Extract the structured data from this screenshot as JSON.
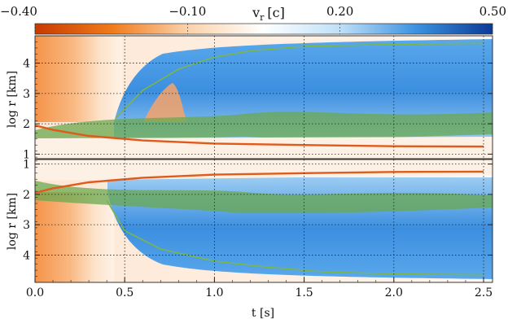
{
  "chart_data": {
    "type": "heatmap",
    "colorbar": {
      "label": "v",
      "label_sub": "r",
      "label_unit": "[c]",
      "range": [
        -0.4,
        0.5
      ],
      "tick_values": [
        -0.4,
        -0.1,
        0.2,
        0.5
      ],
      "tick_labels": [
        "−0.40",
        "−0.10",
        "0.20",
        "0.50"
      ],
      "colors": [
        "#c83a00",
        "#f07a1a",
        "#fbd2aa",
        "#ffffff",
        "#bfe0f8",
        "#3c92e0",
        "#0a3a96"
      ]
    },
    "xaxis": {
      "label": "t [s]",
      "range": [
        0.0,
        2.55
      ],
      "tick_values": [
        0.0,
        0.5,
        1.0,
        1.5,
        2.0,
        2.5
      ],
      "tick_labels": [
        "0.0",
        "0.5",
        "1.0",
        "1.5",
        "2.0",
        "2.5"
      ]
    },
    "panels": [
      {
        "name": "upper",
        "ylabel": "log r [km]",
        "yrange": [
          0.85,
          4.9
        ],
        "y_inverted": false,
        "tick_values": [
          1,
          2,
          3,
          4
        ],
        "tick_labels": [
          "1",
          "2",
          "3",
          "4"
        ]
      },
      {
        "name": "lower",
        "ylabel": "log r [km]",
        "yrange": [
          0.85,
          4.9
        ],
        "y_inverted": true,
        "tick_values": [
          1,
          2,
          3,
          4
        ],
        "tick_labels": [
          "1",
          "2",
          "3",
          "4"
        ]
      }
    ],
    "grid": true,
    "features": {
      "shock_radius_upper": {
        "t": [
          0.45,
          0.6,
          0.8,
          1.0,
          1.2,
          1.5,
          2.0,
          2.5
        ],
        "log_r": [
          2.2,
          3.1,
          3.8,
          4.2,
          4.4,
          4.55,
          4.62,
          4.65
        ]
      },
      "shock_radius_lower": {
        "t": [
          0.4,
          0.5,
          0.7,
          1.0,
          1.3,
          1.6,
          2.0,
          2.5
        ],
        "log_r": [
          2.2,
          3.2,
          3.8,
          4.2,
          4.4,
          4.55,
          4.62,
          4.65
        ]
      },
      "neutron_star_surface": {
        "t": [
          0.0,
          0.1,
          0.3,
          0.6,
          1.0,
          1.5,
          2.0,
          2.5
        ],
        "log_r": [
          1.95,
          1.8,
          1.6,
          1.45,
          1.35,
          1.3,
          1.26,
          1.25
        ]
      }
    }
  }
}
